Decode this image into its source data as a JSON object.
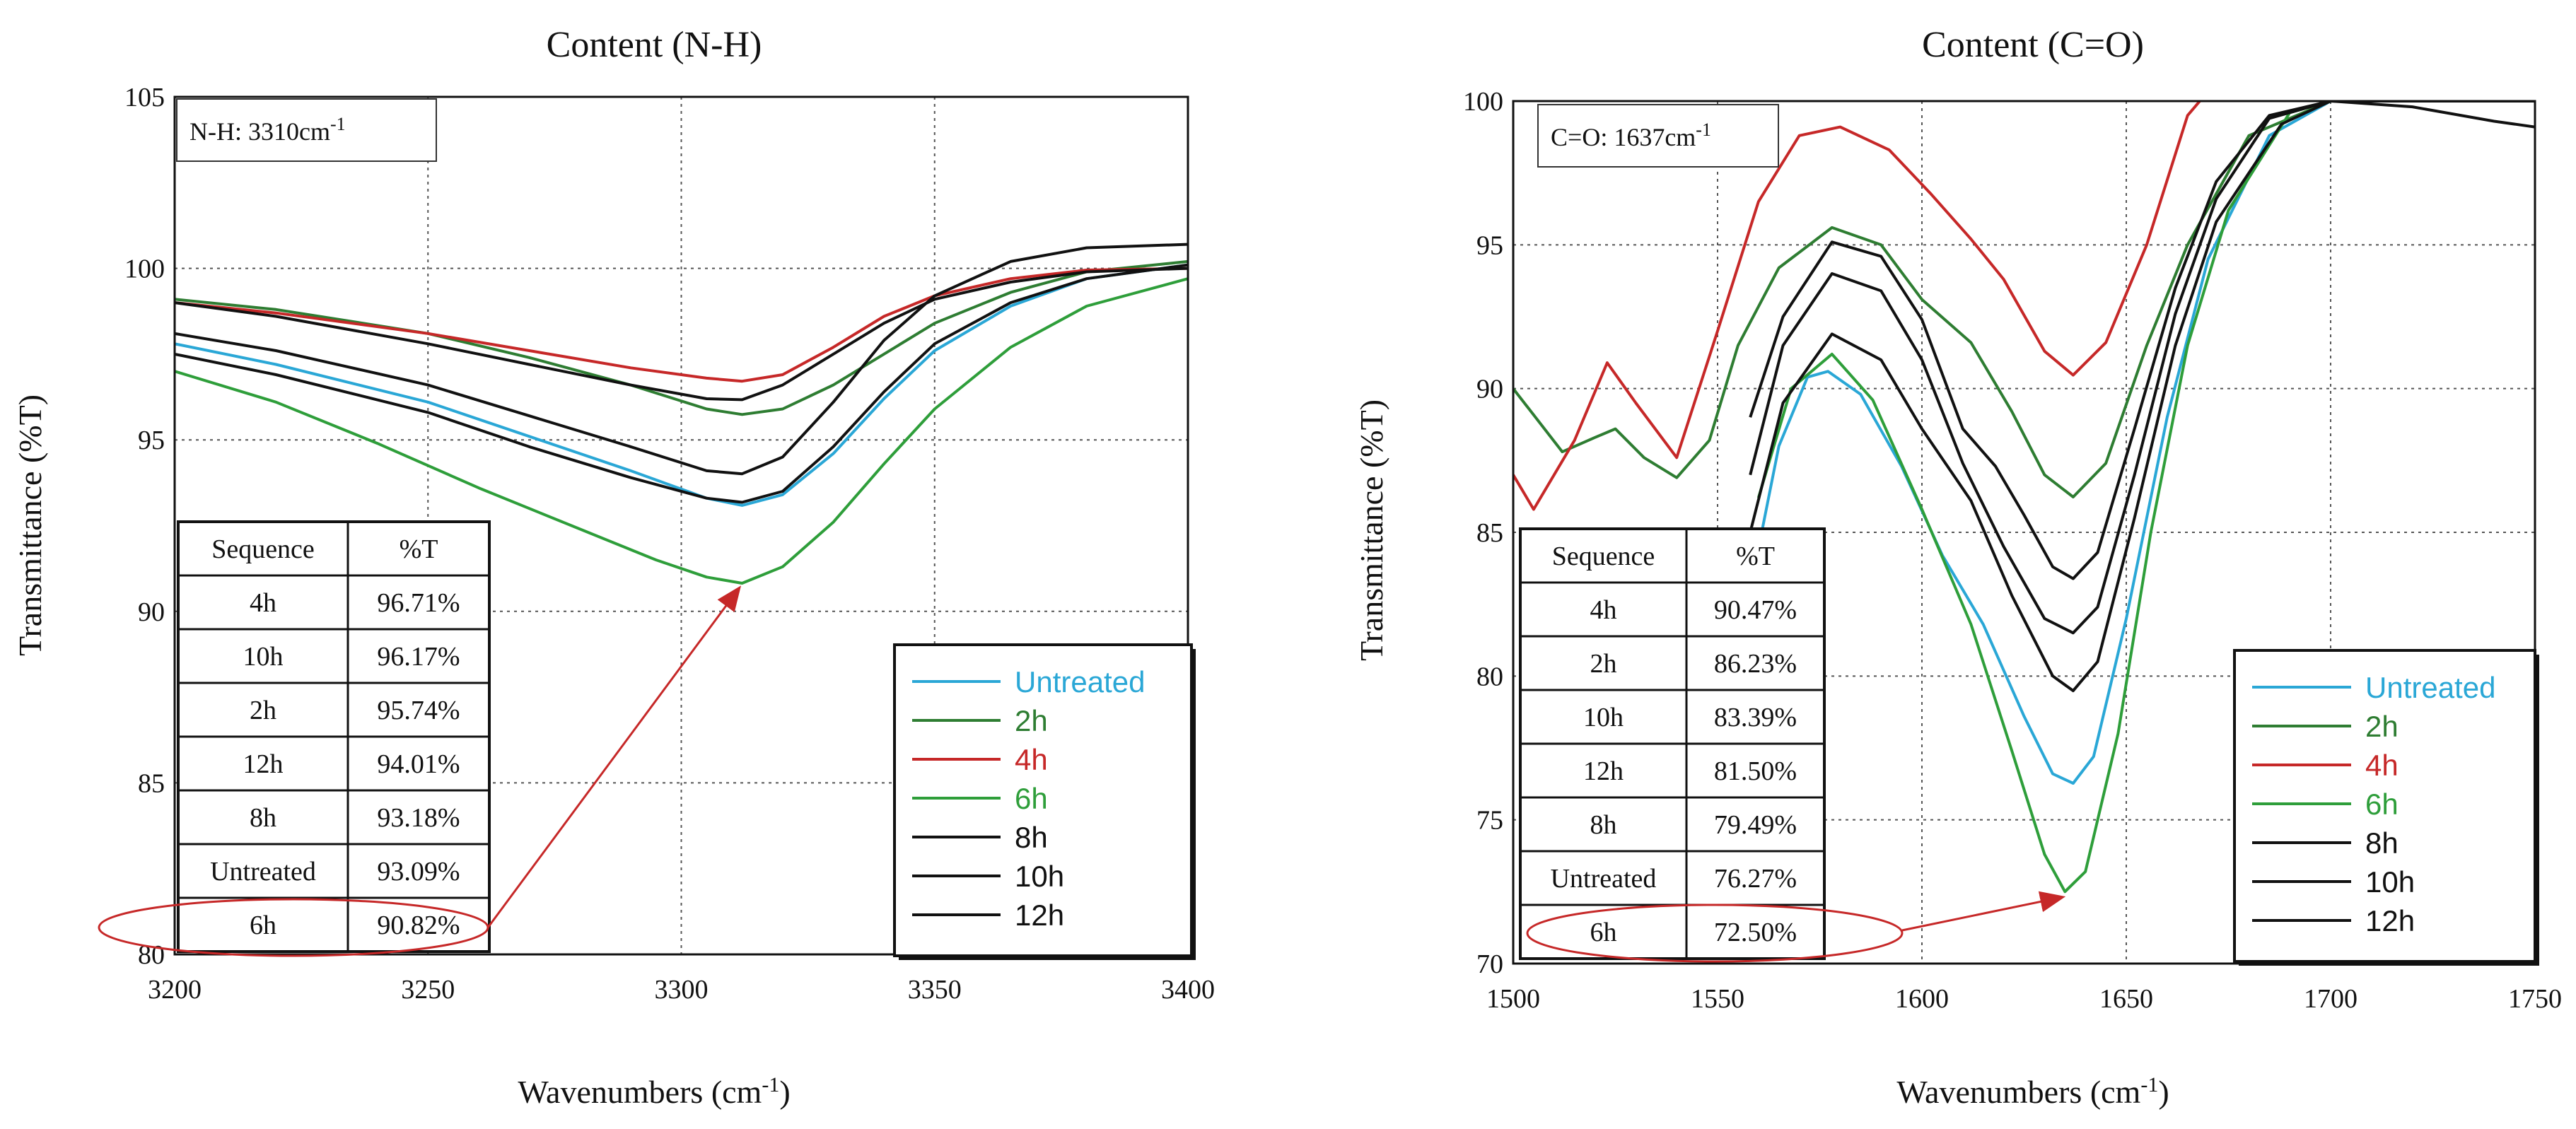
{
  "chart_data": [
    {
      "type": "line",
      "title": "Content (N-H)",
      "xlabel": "Wavenumbers (cm-1)",
      "xlabel_main": "Wavenumbers (cm",
      "xlabel_sup": "-1",
      "xlabel_end": ")",
      "ylabel": "Transmittance (%T)",
      "xlim": [
        3200,
        3400
      ],
      "ylim": [
        80,
        105
      ],
      "xticks": [
        3200,
        3250,
        3300,
        3350,
        3400
      ],
      "yticks": [
        80,
        85,
        90,
        95,
        100,
        105
      ],
      "annotation": {
        "main": "N-H: 3310cm",
        "sup": "-1"
      },
      "table": {
        "headers": [
          "Sequence",
          "%T"
        ],
        "rows": [
          [
            "4h",
            "96.71%"
          ],
          [
            "10h",
            "96.17%"
          ],
          [
            "2h",
            "95.74%"
          ],
          [
            "12h",
            "94.01%"
          ],
          [
            "8h",
            "93.18%"
          ],
          [
            "Untreated",
            "93.09%"
          ],
          [
            "6h",
            "90.82%"
          ]
        ]
      },
      "highlight": {
        "label": "6h",
        "x": 3312,
        "y": 90.82
      },
      "series": [
        {
          "name": "Untreated",
          "color": "#2aa7d6",
          "points": [
            [
              3200,
              97.8
            ],
            [
              3220,
              97.2
            ],
            [
              3250,
              96.1
            ],
            [
              3270,
              95.1
            ],
            [
              3290,
              94.1
            ],
            [
              3305,
              93.3
            ],
            [
              3312,
              93.09
            ],
            [
              3320,
              93.4
            ],
            [
              3330,
              94.6
            ],
            [
              3340,
              96.2
            ],
            [
              3350,
              97.6
            ],
            [
              3365,
              98.9
            ],
            [
              3380,
              99.7
            ],
            [
              3400,
              100.1
            ]
          ]
        },
        {
          "name": "2h",
          "color": "#2e7d32",
          "points": [
            [
              3200,
              99.1
            ],
            [
              3220,
              98.8
            ],
            [
              3250,
              98.1
            ],
            [
              3270,
              97.4
            ],
            [
              3290,
              96.6
            ],
            [
              3305,
              95.9
            ],
            [
              3312,
              95.74
            ],
            [
              3320,
              95.9
            ],
            [
              3330,
              96.6
            ],
            [
              3340,
              97.5
            ],
            [
              3350,
              98.4
            ],
            [
              3365,
              99.3
            ],
            [
              3380,
              99.9
            ],
            [
              3400,
              100.2
            ]
          ]
        },
        {
          "name": "4h",
          "color": "#c62828",
          "points": [
            [
              3200,
              99.0
            ],
            [
              3220,
              98.7
            ],
            [
              3250,
              98.1
            ],
            [
              3270,
              97.6
            ],
            [
              3290,
              97.1
            ],
            [
              3305,
              96.8
            ],
            [
              3312,
              96.71
            ],
            [
              3320,
              96.9
            ],
            [
              3330,
              97.7
            ],
            [
              3340,
              98.6
            ],
            [
              3350,
              99.2
            ],
            [
              3365,
              99.7
            ],
            [
              3380,
              99.95
            ],
            [
              3400,
              100.0
            ]
          ]
        },
        {
          "name": "6h",
          "color": "#2e9e3a",
          "points": [
            [
              3200,
              97.0
            ],
            [
              3220,
              96.1
            ],
            [
              3240,
              94.9
            ],
            [
              3260,
              93.6
            ],
            [
              3280,
              92.4
            ],
            [
              3295,
              91.5
            ],
            [
              3305,
              91.0
            ],
            [
              3312,
              90.82
            ],
            [
              3320,
              91.3
            ],
            [
              3330,
              92.6
            ],
            [
              3340,
              94.3
            ],
            [
              3350,
              95.9
            ],
            [
              3365,
              97.7
            ],
            [
              3380,
              98.9
            ],
            [
              3400,
              99.7
            ]
          ]
        },
        {
          "name": "8h",
          "color": "#111111",
          "points": [
            [
              3200,
              97.5
            ],
            [
              3220,
              96.9
            ],
            [
              3250,
              95.8
            ],
            [
              3270,
              94.8
            ],
            [
              3290,
              93.9
            ],
            [
              3305,
              93.3
            ],
            [
              3312,
              93.18
            ],
            [
              3320,
              93.5
            ],
            [
              3330,
              94.8
            ],
            [
              3340,
              96.4
            ],
            [
              3350,
              97.8
            ],
            [
              3365,
              99.0
            ],
            [
              3380,
              99.7
            ],
            [
              3400,
              100.1
            ]
          ]
        },
        {
          "name": "10h",
          "color": "#111111",
          "points": [
            [
              3200,
              99.0
            ],
            [
              3220,
              98.6
            ],
            [
              3250,
              97.8
            ],
            [
              3270,
              97.2
            ],
            [
              3290,
              96.6
            ],
            [
              3305,
              96.2
            ],
            [
              3312,
              96.17
            ],
            [
              3320,
              96.6
            ],
            [
              3330,
              97.5
            ],
            [
              3340,
              98.4
            ],
            [
              3350,
              99.1
            ],
            [
              3365,
              99.6
            ],
            [
              3380,
              99.9
            ],
            [
              3400,
              100.0
            ]
          ]
        },
        {
          "name": "12h",
          "color": "#111111",
          "points": [
            [
              3200,
              98.1
            ],
            [
              3220,
              97.6
            ],
            [
              3250,
              96.6
            ],
            [
              3270,
              95.7
            ],
            [
              3290,
              94.8
            ],
            [
              3305,
              94.1
            ],
            [
              3312,
              94.01
            ],
            [
              3320,
              94.5
            ],
            [
              3330,
              96.1
            ],
            [
              3340,
              97.9
            ],
            [
              3350,
              99.2
            ],
            [
              3365,
              100.2
            ],
            [
              3380,
              100.6
            ],
            [
              3400,
              100.7
            ]
          ]
        }
      ]
    },
    {
      "type": "line",
      "title": "Content (C=O)",
      "xlabel": "Wavenumbers (cm-1)",
      "xlabel_main": "Wavenumbers (cm",
      "xlabel_sup": "-1",
      "xlabel_end": ")",
      "ylabel": "Transmittance (%T)",
      "xlim": [
        1500,
        1750
      ],
      "ylim": [
        70,
        100
      ],
      "xticks": [
        1500,
        1550,
        1600,
        1650,
        1700,
        1750
      ],
      "yticks": [
        70,
        75,
        80,
        85,
        90,
        95,
        100
      ],
      "annotation": {
        "main": "C=O: 1637cm",
        "sup": "-1"
      },
      "table": {
        "headers": [
          "Sequence",
          "%T"
        ],
        "rows": [
          [
            "4h",
            "90.47%"
          ],
          [
            "2h",
            "86.23%"
          ],
          [
            "10h",
            "83.39%"
          ],
          [
            "12h",
            "81.50%"
          ],
          [
            "8h",
            "79.49%"
          ],
          [
            "Untreated",
            "76.27%"
          ],
          [
            "6h",
            "72.50%"
          ]
        ]
      },
      "highlight": {
        "label": "6h",
        "x": 1635,
        "y": 72.5
      },
      "series": [
        {
          "name": "Untreated",
          "color": "#2aa7d6",
          "points": [
            [
              1558,
              83
            ],
            [
              1565,
              88
            ],
            [
              1572,
              90.4
            ],
            [
              1577,
              90.6
            ],
            [
              1585,
              89.8
            ],
            [
              1595,
              87.3
            ],
            [
              1605,
              84.2
            ],
            [
              1615,
              81.8
            ],
            [
              1625,
              78.6
            ],
            [
              1632,
              76.6
            ],
            [
              1637,
              76.27
            ],
            [
              1642,
              77.2
            ],
            [
              1650,
              82
            ],
            [
              1660,
              89
            ],
            [
              1670,
              94.5
            ],
            [
              1685,
              98.8
            ],
            [
              1700,
              100
            ],
            [
              1750,
              100
            ]
          ]
        },
        {
          "name": "2h",
          "color": "#2e7d32",
          "points": [
            [
              1500,
              90
            ],
            [
              1512,
              87.8
            ],
            [
              1520,
              88.3
            ],
            [
              1525,
              88.6
            ],
            [
              1532,
              87.6
            ],
            [
              1540,
              86.9
            ],
            [
              1548,
              88.2
            ],
            [
              1555,
              91.5
            ],
            [
              1565,
              94.2
            ],
            [
              1578,
              95.6
            ],
            [
              1590,
              95
            ],
            [
              1600,
              93.1
            ],
            [
              1612,
              91.6
            ],
            [
              1622,
              89.2
            ],
            [
              1630,
              87
            ],
            [
              1637,
              86.23
            ],
            [
              1645,
              87.4
            ],
            [
              1655,
              91.5
            ],
            [
              1665,
              95
            ],
            [
              1680,
              98.8
            ],
            [
              1700,
              100
            ],
            [
              1750,
              100
            ]
          ]
        },
        {
          "name": "4h",
          "color": "#c62828",
          "points": [
            [
              1500,
              87
            ],
            [
              1505,
              85.8
            ],
            [
              1515,
              88.2
            ],
            [
              1523,
              90.9
            ],
            [
              1530,
              89.5
            ],
            [
              1540,
              87.6
            ],
            [
              1550,
              92
            ],
            [
              1560,
              96.5
            ],
            [
              1570,
              98.8
            ],
            [
              1580,
              99.1
            ],
            [
              1592,
              98.3
            ],
            [
              1602,
              96.8
            ],
            [
              1612,
              95.2
            ],
            [
              1620,
              93.8
            ],
            [
              1630,
              91.3
            ],
            [
              1637,
              90.47
            ],
            [
              1645,
              91.6
            ],
            [
              1655,
              95
            ],
            [
              1665,
              99.5
            ],
            [
              1668,
              100
            ]
          ]
        },
        {
          "name": "6h",
          "color": "#2e9e3a",
          "points": [
            [
              1560,
              86.2
            ],
            [
              1568,
              90
            ],
            [
              1578,
              91.2
            ],
            [
              1588,
              89.6
            ],
            [
              1600,
              85.8
            ],
            [
              1612,
              81.8
            ],
            [
              1622,
              77.4
            ],
            [
              1630,
              73.8
            ],
            [
              1635,
              72.5
            ],
            [
              1640,
              73.2
            ],
            [
              1648,
              78
            ],
            [
              1656,
              85
            ],
            [
              1665,
              91.5
            ],
            [
              1675,
              96.2
            ],
            [
              1690,
              99.6
            ],
            [
              1700,
              100
            ],
            [
              1750,
              100
            ]
          ]
        },
        {
          "name": "8h",
          "color": "#111111",
          "points": [
            [
              1558,
              85
            ],
            [
              1566,
              89.5
            ],
            [
              1578,
              91.9
            ],
            [
              1590,
              91
            ],
            [
              1600,
              88.6
            ],
            [
              1612,
              86.1
            ],
            [
              1622,
              82.8
            ],
            [
              1632,
              80
            ],
            [
              1637,
              79.49
            ],
            [
              1643,
              80.5
            ],
            [
              1652,
              85.5
            ],
            [
              1662,
              91.5
            ],
            [
              1672,
              95.8
            ],
            [
              1688,
              99.2
            ],
            [
              1700,
              100
            ],
            [
              1750,
              100
            ]
          ]
        },
        {
          "name": "10h",
          "color": "#111111",
          "points": [
            [
              1558,
              89
            ],
            [
              1566,
              92.5
            ],
            [
              1578,
              95.1
            ],
            [
              1590,
              94.6
            ],
            [
              1600,
              92.4
            ],
            [
              1610,
              88.6
            ],
            [
              1618,
              87.3
            ],
            [
              1625,
              85.6
            ],
            [
              1632,
              83.8
            ],
            [
              1637,
              83.39
            ],
            [
              1643,
              84.3
            ],
            [
              1652,
              88.6
            ],
            [
              1662,
              93.5
            ],
            [
              1672,
              97.2
            ],
            [
              1685,
              99.5
            ],
            [
              1700,
              100
            ],
            [
              1750,
              100
            ]
          ]
        },
        {
          "name": "12h",
          "color": "#111111",
          "points": [
            [
              1558,
              87
            ],
            [
              1566,
              91.5
            ],
            [
              1578,
              94
            ],
            [
              1590,
              93.4
            ],
            [
              1600,
              91
            ],
            [
              1610,
              87.4
            ],
            [
              1620,
              84.5
            ],
            [
              1630,
              82
            ],
            [
              1637,
              81.5
            ],
            [
              1643,
              82.4
            ],
            [
              1652,
              87
            ],
            [
              1662,
              92.6
            ],
            [
              1672,
              96.6
            ],
            [
              1685,
              99.4
            ],
            [
              1700,
              100
            ],
            [
              1720,
              99.8
            ],
            [
              1740,
              99.3
            ],
            [
              1750,
              99.1
            ]
          ]
        }
      ]
    }
  ]
}
